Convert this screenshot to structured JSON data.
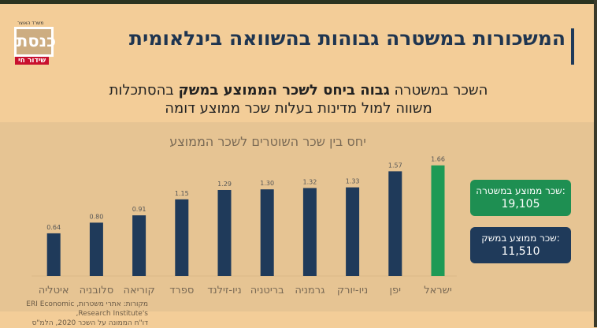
{
  "logo": {
    "top": "משרד האוצר",
    "name": "כנסת",
    "live": "שידור חי"
  },
  "header": {
    "title": "המשכורות במשטרה גבוהות בהשוואה בינלאומית"
  },
  "subtitle": {
    "part1": "השכר במשטרה ",
    "bold": "גבוה ביחס לשכר הממוצע במשק",
    "part2": " בהסתכלות",
    "line2": "משווה למול מדינות בעלות שכר ממוצע דומה"
  },
  "cards": [
    {
      "label": "שכר ממוצע במשטרה:",
      "value": "19,105",
      "color": "#1e8f52"
    },
    {
      "label": "שכר ממוצע במשק:",
      "value": "11,510",
      "color": "#1f3a5a"
    }
  ],
  "source": {
    "line1": "מקורות: אתרי משטרות, ERI Economic Research Institute's,",
    "line2": "דו\"ח הממונה על השכר 2020, הלמ\"ס"
  },
  "chart_data": {
    "type": "bar",
    "title": "יחס בין שכר השוטרים לשכר הממוצע",
    "categories": [
      "ישראל",
      "יפן",
      "ניו-יורק",
      "גרמניה",
      "בריטניה",
      "ניו-זילנד",
      "ספרד",
      "קוריאה",
      "סלובניה",
      "איטליה"
    ],
    "values": [
      1.66,
      1.57,
      1.33,
      1.32,
      1.3,
      1.29,
      1.15,
      0.91,
      0.8,
      0.64
    ],
    "colors": {
      "highlight": "#1e9a55",
      "default": "#1f3a5a"
    },
    "highlight_index": 0,
    "ylim": [
      0,
      1.8
    ],
    "grid": false
  }
}
